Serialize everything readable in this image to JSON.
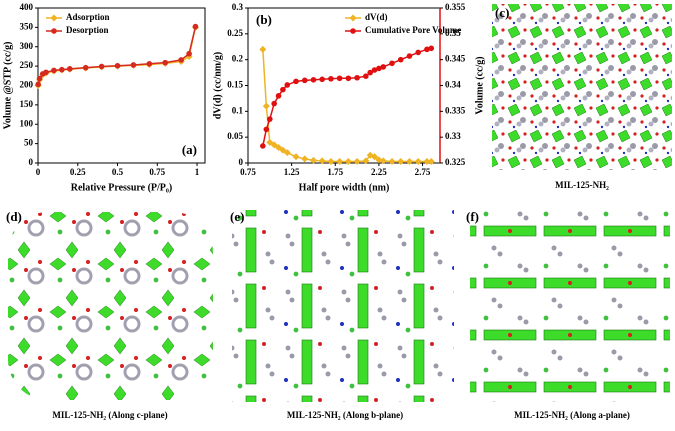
{
  "chart_data": [
    {
      "type": "line",
      "panel_label": "(a)",
      "x_label": "Relative Pressure (P/P₀)",
      "y_label": "Volume @STP (cc/g)",
      "x": [
        0.001,
        0.01,
        0.03,
        0.05,
        0.1,
        0.15,
        0.2,
        0.3,
        0.4,
        0.5,
        0.6,
        0.7,
        0.8,
        0.9,
        0.95,
        0.99
      ],
      "series": [
        {
          "name": "Adsorption",
          "color": "#f0b323",
          "marker": "diamond",
          "values": [
            200,
            215,
            228,
            232,
            237,
            240,
            242,
            245,
            248,
            250,
            252,
            254,
            257,
            262,
            275,
            350
          ]
        },
        {
          "name": "Desorption",
          "color": "#d42a1f",
          "marker": "circle",
          "values": [
            203,
            218,
            230,
            234,
            239,
            241,
            243,
            246,
            249,
            251,
            253,
            256,
            259,
            266,
            282,
            352
          ]
        }
      ],
      "xlim": [
        0,
        1.05
      ],
      "xticks": [
        0,
        0.25,
        0.5,
        0.75,
        1
      ],
      "ylim": [
        0,
        400
      ],
      "yticks": [
        0,
        50,
        100,
        150,
        200,
        250,
        300,
        350,
        400
      ],
      "legend": "upper-left"
    },
    {
      "type": "line",
      "panel_label": "(b)",
      "x_label": "Half pore width (nm)",
      "y_label": "dV(d) (cc/nm/g)",
      "y2_label": "Volume (cc/g)",
      "x": [
        0.92,
        0.96,
        1.0,
        1.05,
        1.1,
        1.15,
        1.2,
        1.3,
        1.4,
        1.5,
        1.6,
        1.7,
        1.8,
        1.9,
        2.0,
        2.1,
        2.15,
        2.2,
        2.25,
        2.3,
        2.4,
        2.5,
        2.6,
        2.7,
        2.8,
        2.85
      ],
      "series": [
        {
          "name": "dV(d)",
          "color": "#f0b323",
          "marker": "diamond",
          "values": [
            0.22,
            0.11,
            0.04,
            0.035,
            0.03,
            0.025,
            0.02,
            0.012,
            0.008,
            0.005,
            0.004,
            0.003,
            0.003,
            0.003,
            0.003,
            0.004,
            0.015,
            0.012,
            0.006,
            0.004,
            0.003,
            0.003,
            0.003,
            0.003,
            0.003,
            0.003
          ]
        },
        {
          "name": "Cumulative Pore Volume",
          "color": "#e01010",
          "marker": "circle",
          "axis": "y2",
          "values": [
            0.3283,
            0.3315,
            0.3335,
            0.3365,
            0.338,
            0.3392,
            0.3401,
            0.3408,
            0.341,
            0.3411,
            0.3412,
            0.3413,
            0.3414,
            0.3414,
            0.3415,
            0.3418,
            0.3425,
            0.343,
            0.3433,
            0.3436,
            0.3443,
            0.345,
            0.3457,
            0.3464,
            0.347,
            0.3472
          ]
        }
      ],
      "xlim": [
        0.75,
        2.95
      ],
      "xticks": [
        0.75,
        1.25,
        1.75,
        2.25,
        2.75
      ],
      "ylim": [
        0,
        0.3
      ],
      "yticks": [
        0,
        0.05,
        0.1,
        0.15,
        0.2,
        0.25,
        0.3
      ],
      "y2lim": [
        0.325,
        0.355
      ],
      "y2ticks": [
        0.325,
        0.33,
        0.335,
        0.34,
        0.345,
        0.35,
        0.355
      ],
      "legend": "upper-right"
    }
  ],
  "panels": [
    {
      "label": "(c)",
      "caption": "MIL-125-NH₂"
    },
    {
      "label": "(d)",
      "caption": "MIL-125-NH₂ (Along c-plane)"
    },
    {
      "label": "(e)",
      "caption": "MIL-125-NH₂ (Along b-plane)"
    },
    {
      "label": "(f)",
      "caption": "MIL-125-NH₂ (Along a-plane)"
    }
  ]
}
